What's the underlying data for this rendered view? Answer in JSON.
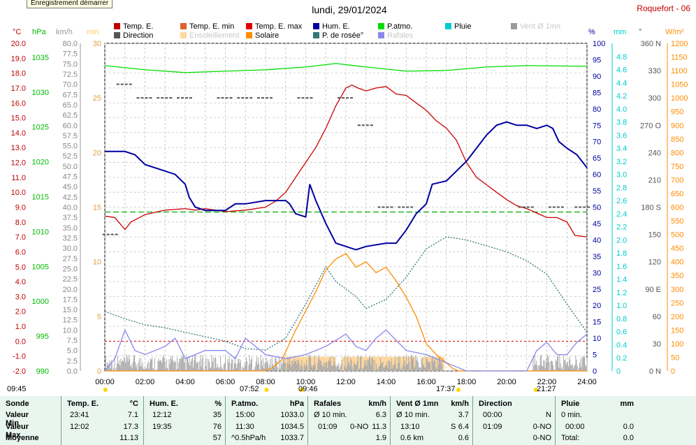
{
  "record_button": "Enregistrement démarrer",
  "date_title": "lundi, 29/01/2024",
  "station": "Roquefort - 06",
  "legend": [
    {
      "label": "Temp. E.",
      "color": "#c00000",
      "muted": false
    },
    {
      "label": "Temp. E. min",
      "color": "#e06030",
      "muted": false
    },
    {
      "label": "Temp. E. max",
      "color": "#e00000",
      "muted": false
    },
    {
      "label": "Hum. E.",
      "color": "#0000a0",
      "muted": false
    },
    {
      "label": "P.atmo.",
      "color": "#00dd00",
      "muted": false
    },
    {
      "label": "Pluie",
      "color": "#00cccc",
      "muted": false
    },
    {
      "label": "Vent Ø 1mn",
      "color": "#9a9a9a",
      "muted": true
    },
    {
      "label": "Direction",
      "color": "#555555",
      "muted": false
    },
    {
      "label": "Ensoleillement",
      "color": "#ffd8a0",
      "muted": true
    },
    {
      "label": "Solaire",
      "color": "#ff8c00",
      "muted": false
    },
    {
      "label": "P. de rosée°",
      "color": "#337777",
      "muted": false
    },
    {
      "label": "Rafales",
      "color": "#8888ee",
      "muted": true
    }
  ],
  "units": {
    "temp": "°C",
    "hpa": "hPa",
    "kmh": "km/h",
    "min": "min",
    "pct": "%",
    "mm": "mm",
    "deg": "°",
    "wm2": "W/m²"
  },
  "markers": {
    "sunrise_left": "09:45",
    "sunrise": "07:52",
    "noon": "09:46",
    "sunset": "17:37",
    "moon": "21:27"
  },
  "chart_data": {
    "type": "line",
    "x_unit": "hours",
    "xlim": [
      0,
      24
    ],
    "x_ticks": [
      "00:00",
      "02:00",
      "04:00",
      "06:00",
      "08:00",
      "10:00",
      "12:00",
      "14:00",
      "16:00",
      "18:00",
      "20:00",
      "22:00",
      "24:00"
    ],
    "axes": {
      "temp": {
        "range": [
          -2,
          20
        ],
        "ticks": [
          "-2.0",
          "-1.0",
          "0.0",
          "1.0",
          "2.0",
          "3.0",
          "4.0",
          "5.0",
          "6.0",
          "7.0",
          "8.0",
          "9.0",
          "10.0",
          "11.0",
          "12.0",
          "13.0",
          "14.0",
          "15.0",
          "16.0",
          "17.0",
          "18.0",
          "19.0",
          "20.0"
        ],
        "color": "#c00000"
      },
      "pressure": {
        "range": [
          990,
          1037
        ],
        "ticks": [
          "990",
          "995",
          "1000",
          "1005",
          "1010",
          "1015",
          "1020",
          "1025",
          "1030",
          "1035"
        ],
        "color": "#00bb00"
      },
      "wind": {
        "range": [
          0,
          80
        ],
        "ticks": [
          "0.0",
          "2.5",
          "5.0",
          "7.5",
          "10.0",
          "12.5",
          "15.0",
          "17.5",
          "20.0",
          "22.5",
          "25.0",
          "27.5",
          "30.0",
          "32.5",
          "35.0",
          "37.5",
          "40.0",
          "42.5",
          "45.0",
          "47.5",
          "50.0",
          "52.5",
          "55.0",
          "57.5",
          "60.0",
          "62.5",
          "65.0",
          "67.5",
          "70.0",
          "72.5",
          "75.0",
          "77.5",
          "80.0"
        ],
        "color": "#888888"
      },
      "sun": {
        "range": [
          0,
          30
        ],
        "ticks": [
          "0",
          "5",
          "10",
          "15",
          "20",
          "25",
          "30"
        ],
        "color": "#e0a040"
      },
      "humidity": {
        "range": [
          0,
          100
        ],
        "ticks": [
          "0",
          "5",
          "10",
          "15",
          "20",
          "25",
          "30",
          "35",
          "40",
          "45",
          "50",
          "55",
          "60",
          "65",
          "70",
          "75",
          "80",
          "85",
          "90",
          "95",
          "100"
        ],
        "color": "#0000a0"
      },
      "rain": {
        "range": [
          0,
          5
        ],
        "ticks": [
          "0",
          "0.2",
          "0.4",
          "0.6",
          "0.8",
          "1.0",
          "1.2",
          "1.4",
          "1.6",
          "1.8",
          "2.0",
          "2.2",
          "2.4",
          "2.6",
          "2.8",
          "3.0",
          "3.2",
          "3.4",
          "3.6",
          "3.8",
          "4.0",
          "4.2",
          "4.4",
          "4.6",
          "4.8"
        ],
        "color": "#00cccc"
      },
      "direction": {
        "range": [
          0,
          360
        ],
        "ticks": [
          "0 N",
          "30",
          "60",
          "90 E",
          "120",
          "150",
          "180 S",
          "210",
          "240",
          "270 O",
          "300",
          "330",
          "360 N"
        ],
        "color": "#555555"
      },
      "solar": {
        "range": [
          0,
          1200
        ],
        "ticks": [
          "0",
          "50",
          "100",
          "150",
          "200",
          "250",
          "300",
          "350",
          "400",
          "450",
          "500",
          "550",
          "600",
          "650",
          "700",
          "750",
          "800",
          "850",
          "900",
          "950",
          "1000",
          "1050",
          "1100",
          "1150",
          "1200"
        ],
        "color": "#ff8c00"
      }
    },
    "series": [
      {
        "name": "Temp. E.",
        "axis": "temp",
        "color": "#cc0000",
        "points": [
          [
            0,
            8.4
          ],
          [
            0.5,
            8.3
          ],
          [
            1,
            7.5
          ],
          [
            1.3,
            8
          ],
          [
            2,
            8.5
          ],
          [
            3,
            8.8
          ],
          [
            4,
            8.9
          ],
          [
            4.5,
            8.8
          ],
          [
            5,
            8.9
          ],
          [
            6,
            8.7
          ],
          [
            7,
            8.8
          ],
          [
            8,
            9
          ],
          [
            8.5,
            9.4
          ],
          [
            9,
            10
          ],
          [
            9.5,
            11
          ],
          [
            10,
            12
          ],
          [
            10.5,
            13
          ],
          [
            11,
            14.3
          ],
          [
            11.5,
            15.8
          ],
          [
            12,
            17
          ],
          [
            12.3,
            17.2
          ],
          [
            12.6,
            17
          ],
          [
            13,
            16.8
          ],
          [
            13.5,
            17
          ],
          [
            14,
            17.1
          ],
          [
            14.5,
            16.6
          ],
          [
            15,
            16.5
          ],
          [
            15.5,
            16
          ],
          [
            16,
            15.5
          ],
          [
            16.5,
            14.8
          ],
          [
            17,
            14.3
          ],
          [
            17.5,
            13.5
          ],
          [
            18,
            12
          ],
          [
            18.5,
            11
          ],
          [
            19,
            10.5
          ],
          [
            19.5,
            10
          ],
          [
            20,
            9.5
          ],
          [
            20.5,
            9.1
          ],
          [
            21,
            8.9
          ],
          [
            21.5,
            8.6
          ],
          [
            22,
            8.3
          ],
          [
            22.5,
            8.3
          ],
          [
            23,
            8
          ],
          [
            23.4,
            7.1
          ],
          [
            24,
            7
          ]
        ]
      },
      {
        "name": "Hum. E.",
        "axis": "humidity",
        "color": "#0000a0",
        "points": [
          [
            0,
            67
          ],
          [
            1,
            67
          ],
          [
            1.5,
            66
          ],
          [
            2,
            63
          ],
          [
            3,
            61
          ],
          [
            3.5,
            60
          ],
          [
            4,
            57
          ],
          [
            4.2,
            53
          ],
          [
            4.5,
            50
          ],
          [
            5,
            49
          ],
          [
            6,
            49
          ],
          [
            6.5,
            51
          ],
          [
            7,
            51
          ],
          [
            8,
            52
          ],
          [
            9,
            52
          ],
          [
            9.2,
            51
          ],
          [
            9.5,
            48
          ],
          [
            10,
            47
          ],
          [
            10.2,
            57
          ],
          [
            10.5,
            52
          ],
          [
            11,
            45
          ],
          [
            11.5,
            39
          ],
          [
            12,
            38
          ],
          [
            12.5,
            37
          ],
          [
            13,
            38
          ],
          [
            14,
            39
          ],
          [
            14.5,
            39
          ],
          [
            15,
            43
          ],
          [
            15.5,
            48
          ],
          [
            16,
            51
          ],
          [
            16.3,
            57
          ],
          [
            17,
            58
          ],
          [
            17.5,
            61
          ],
          [
            18,
            64
          ],
          [
            18.5,
            68
          ],
          [
            19,
            72
          ],
          [
            19.5,
            75
          ],
          [
            20,
            76
          ],
          [
            20.5,
            75
          ],
          [
            21,
            75
          ],
          [
            21.5,
            74
          ],
          [
            22,
            75
          ],
          [
            22.3,
            74
          ],
          [
            22.6,
            70
          ],
          [
            23,
            68
          ],
          [
            23.5,
            66
          ],
          [
            24,
            62
          ]
        ]
      },
      {
        "name": "P.atmo.",
        "axis": "pressure",
        "color": "#00dd00",
        "points": [
          [
            0,
            1033.8
          ],
          [
            2,
            1033.2
          ],
          [
            4,
            1032.8
          ],
          [
            6,
            1033
          ],
          [
            8,
            1033.2
          ],
          [
            10,
            1033.6
          ],
          [
            11.5,
            1034.1
          ],
          [
            13,
            1033.6
          ],
          [
            15,
            1033
          ],
          [
            17,
            1033.1
          ],
          [
            19,
            1033.6
          ],
          [
            21,
            1033.8
          ],
          [
            24,
            1033.7
          ]
        ]
      },
      {
        "name": "P. de rosée°",
        "axis": "temp",
        "color": "#337777",
        "points": [
          [
            0,
            2
          ],
          [
            1,
            1.5
          ],
          [
            2,
            1.1
          ],
          [
            3,
            0.9
          ],
          [
            4,
            0.6
          ],
          [
            5,
            0.3
          ],
          [
            6,
            0
          ],
          [
            7,
            -0.5
          ],
          [
            8,
            -0.6
          ],
          [
            9,
            0.2
          ],
          [
            10,
            2.5
          ],
          [
            11,
            5
          ],
          [
            11.5,
            4
          ],
          [
            12,
            3.5
          ],
          [
            12.5,
            3
          ],
          [
            13,
            2.2
          ],
          [
            14,
            2.8
          ],
          [
            15,
            4.3
          ],
          [
            16,
            6.2
          ],
          [
            17,
            7
          ],
          [
            18,
            6.8
          ],
          [
            19,
            6.4
          ],
          [
            20,
            6
          ],
          [
            21,
            5.4
          ],
          [
            22,
            4.5
          ],
          [
            23,
            2.5
          ],
          [
            24,
            0.6
          ]
        ]
      },
      {
        "name": "Solaire",
        "axis": "solar",
        "color": "#ff8c00",
        "points": [
          [
            0,
            0
          ],
          [
            7.9,
            0
          ],
          [
            8.3,
            10
          ],
          [
            8.8,
            40
          ],
          [
            9,
            70
          ],
          [
            9.5,
            150
          ],
          [
            10,
            220
          ],
          [
            10.5,
            290
          ],
          [
            11,
            370
          ],
          [
            11.5,
            410
          ],
          [
            12,
            430
          ],
          [
            12.5,
            380
          ],
          [
            13,
            400
          ],
          [
            13.5,
            360
          ],
          [
            14,
            380
          ],
          [
            14.5,
            330
          ],
          [
            15,
            270
          ],
          [
            15.5,
            200
          ],
          [
            16,
            100
          ],
          [
            16.5,
            60
          ],
          [
            17,
            30
          ],
          [
            17.3,
            10
          ],
          [
            17.6,
            0
          ],
          [
            24,
            0
          ]
        ]
      },
      {
        "name": "Rafales",
        "axis": "wind",
        "color": "#8888ee",
        "points": [
          [
            0,
            0
          ],
          [
            0.5,
            3
          ],
          [
            1,
            10
          ],
          [
            1.5,
            5
          ],
          [
            2,
            4
          ],
          [
            3,
            6
          ],
          [
            3.5,
            8
          ],
          [
            4,
            3
          ],
          [
            5,
            5
          ],
          [
            6,
            5
          ],
          [
            6.5,
            3
          ],
          [
            7,
            8
          ],
          [
            8,
            4
          ],
          [
            9,
            3
          ],
          [
            10,
            4
          ],
          [
            11,
            6
          ],
          [
            12,
            9
          ],
          [
            12.5,
            6
          ],
          [
            13,
            5
          ],
          [
            13.5,
            8
          ],
          [
            14,
            10
          ],
          [
            15,
            5
          ],
          [
            16,
            4
          ],
          [
            17,
            2
          ],
          [
            18,
            0
          ],
          [
            21,
            0
          ],
          [
            21.5,
            5
          ],
          [
            22,
            7
          ],
          [
            22.5,
            4
          ],
          [
            23,
            4
          ],
          [
            23.5,
            7
          ],
          [
            24,
            9
          ]
        ]
      }
    ],
    "wind_mean_band": {
      "axis": "wind",
      "color": "#aaaaaa",
      "approx_max": 4
    },
    "sunshine_periods": [
      [
        8.9,
        11.5
      ],
      [
        11.8,
        15.5
      ],
      [
        15.8,
        16.9
      ]
    ],
    "direction_marks": [
      [
        1,
        315
      ],
      [
        2,
        300
      ],
      [
        3,
        300
      ],
      [
        4,
        300
      ],
      [
        6,
        300
      ],
      [
        7,
        300
      ],
      [
        8,
        300
      ],
      [
        10,
        300
      ],
      [
        12,
        300
      ],
      [
        13,
        270
      ],
      [
        14,
        180
      ],
      [
        15,
        180
      ],
      [
        21,
        180
      ],
      [
        22.5,
        180
      ],
      [
        23.8,
        180
      ],
      [
        0.3,
        150
      ]
    ],
    "reference_line": {
      "axis": "humidity",
      "value": 48.5,
      "color": "#00aa00"
    }
  },
  "stats": {
    "sections": [
      {
        "header": "Sonde",
        "unit": ""
      },
      {
        "header": "Temp. E.",
        "unit": "°C"
      },
      {
        "header": "Hum. E.",
        "unit": "%"
      },
      {
        "header": "P.atmo.",
        "unit": "hPa"
      },
      {
        "header": "Rafales",
        "unit": "km/h"
      },
      {
        "header": "Vent Ø 1mn",
        "unit": "km/h"
      },
      {
        "header": "Direction",
        "unit": ""
      },
      {
        "header": "Pluie",
        "unit": "mm"
      }
    ],
    "row_labels": [
      "Valeur Min",
      "Valeur Max",
      "Moyenne"
    ],
    "temp": {
      "min_time": "23:41",
      "min": "7.1",
      "max_time": "12:02",
      "max": "17.3",
      "avg": "11.13"
    },
    "hum": {
      "min_time": "12:12",
      "min": "35",
      "max_time": "19:35",
      "max": "76",
      "avg": "57"
    },
    "press": {
      "min_time": "15:00",
      "min": "1033.0",
      "max_time": "11:30",
      "max": "1034.5",
      "avg_label": "^0.5hPa/h",
      "avg": "1033.7"
    },
    "gust": {
      "r1_label": "Ø 10 min.",
      "r1": "6.3",
      "r2_time": "01:09",
      "r2_dir": "0-NO",
      "r2": "11.3",
      "avg": "1.9"
    },
    "wind": {
      "r1_label": "Ø 10 min.",
      "r1": "3.7",
      "r2_time": "13:10",
      "r2_dir": "S",
      "r2": "6.4",
      "r3_label": "0.6 km",
      "avg": "0.6"
    },
    "dir": {
      "r1_time": "00:00",
      "r1": "N",
      "r2_time": "01:09",
      "r2": "0-NO",
      "avg": "0-NO"
    },
    "rain": {
      "r1": "0 min.",
      "r2_time": "00:00",
      "r2": "0.0",
      "r3_label": "Total:",
      "avg": "0.0"
    }
  }
}
